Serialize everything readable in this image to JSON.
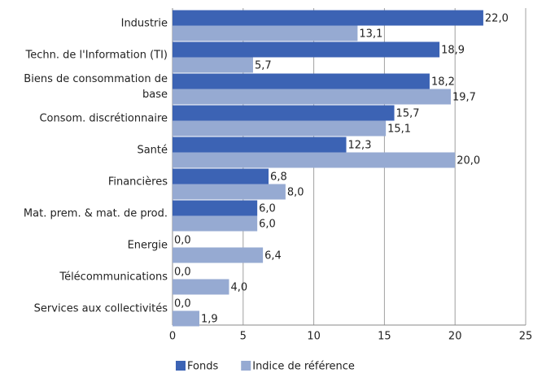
{
  "chart_data": {
    "type": "bar",
    "orientation": "horizontal",
    "categories": [
      "Industrie",
      "Techn. de l'Information (TI)",
      "Biens de consommation de base",
      "Consom. discrétionnaire",
      "Santé",
      "Financières",
      "Mat. prem. & mat. de prod.",
      "Energie",
      "Télécommunications",
      "Services aux collectivités"
    ],
    "series": [
      {
        "name": "Fonds",
        "color": "#3c63b4",
        "values": [
          22.0,
          18.9,
          18.2,
          15.7,
          12.3,
          6.8,
          6.0,
          0.0,
          0.0,
          0.0
        ],
        "value_labels": [
          "22,0",
          "18,9",
          "18,2",
          "15,7",
          "12,3",
          "6,8",
          "6,0",
          "0,0",
          "0,0",
          "0,0"
        ]
      },
      {
        "name": "Indice de référence",
        "color": "#96aad2",
        "values": [
          13.1,
          5.7,
          19.7,
          15.1,
          20.0,
          8.0,
          6.0,
          6.4,
          4.0,
          1.9
        ],
        "value_labels": [
          "13,1",
          "5,7",
          "19,7",
          "15,1",
          "20,0",
          "8,0",
          "6,0",
          "6,4",
          "4,0",
          "1,9"
        ]
      }
    ],
    "xlim": [
      0,
      25
    ],
    "xticks": [
      0,
      5,
      10,
      15,
      20,
      25
    ],
    "grid": true,
    "legend": "bottom"
  }
}
